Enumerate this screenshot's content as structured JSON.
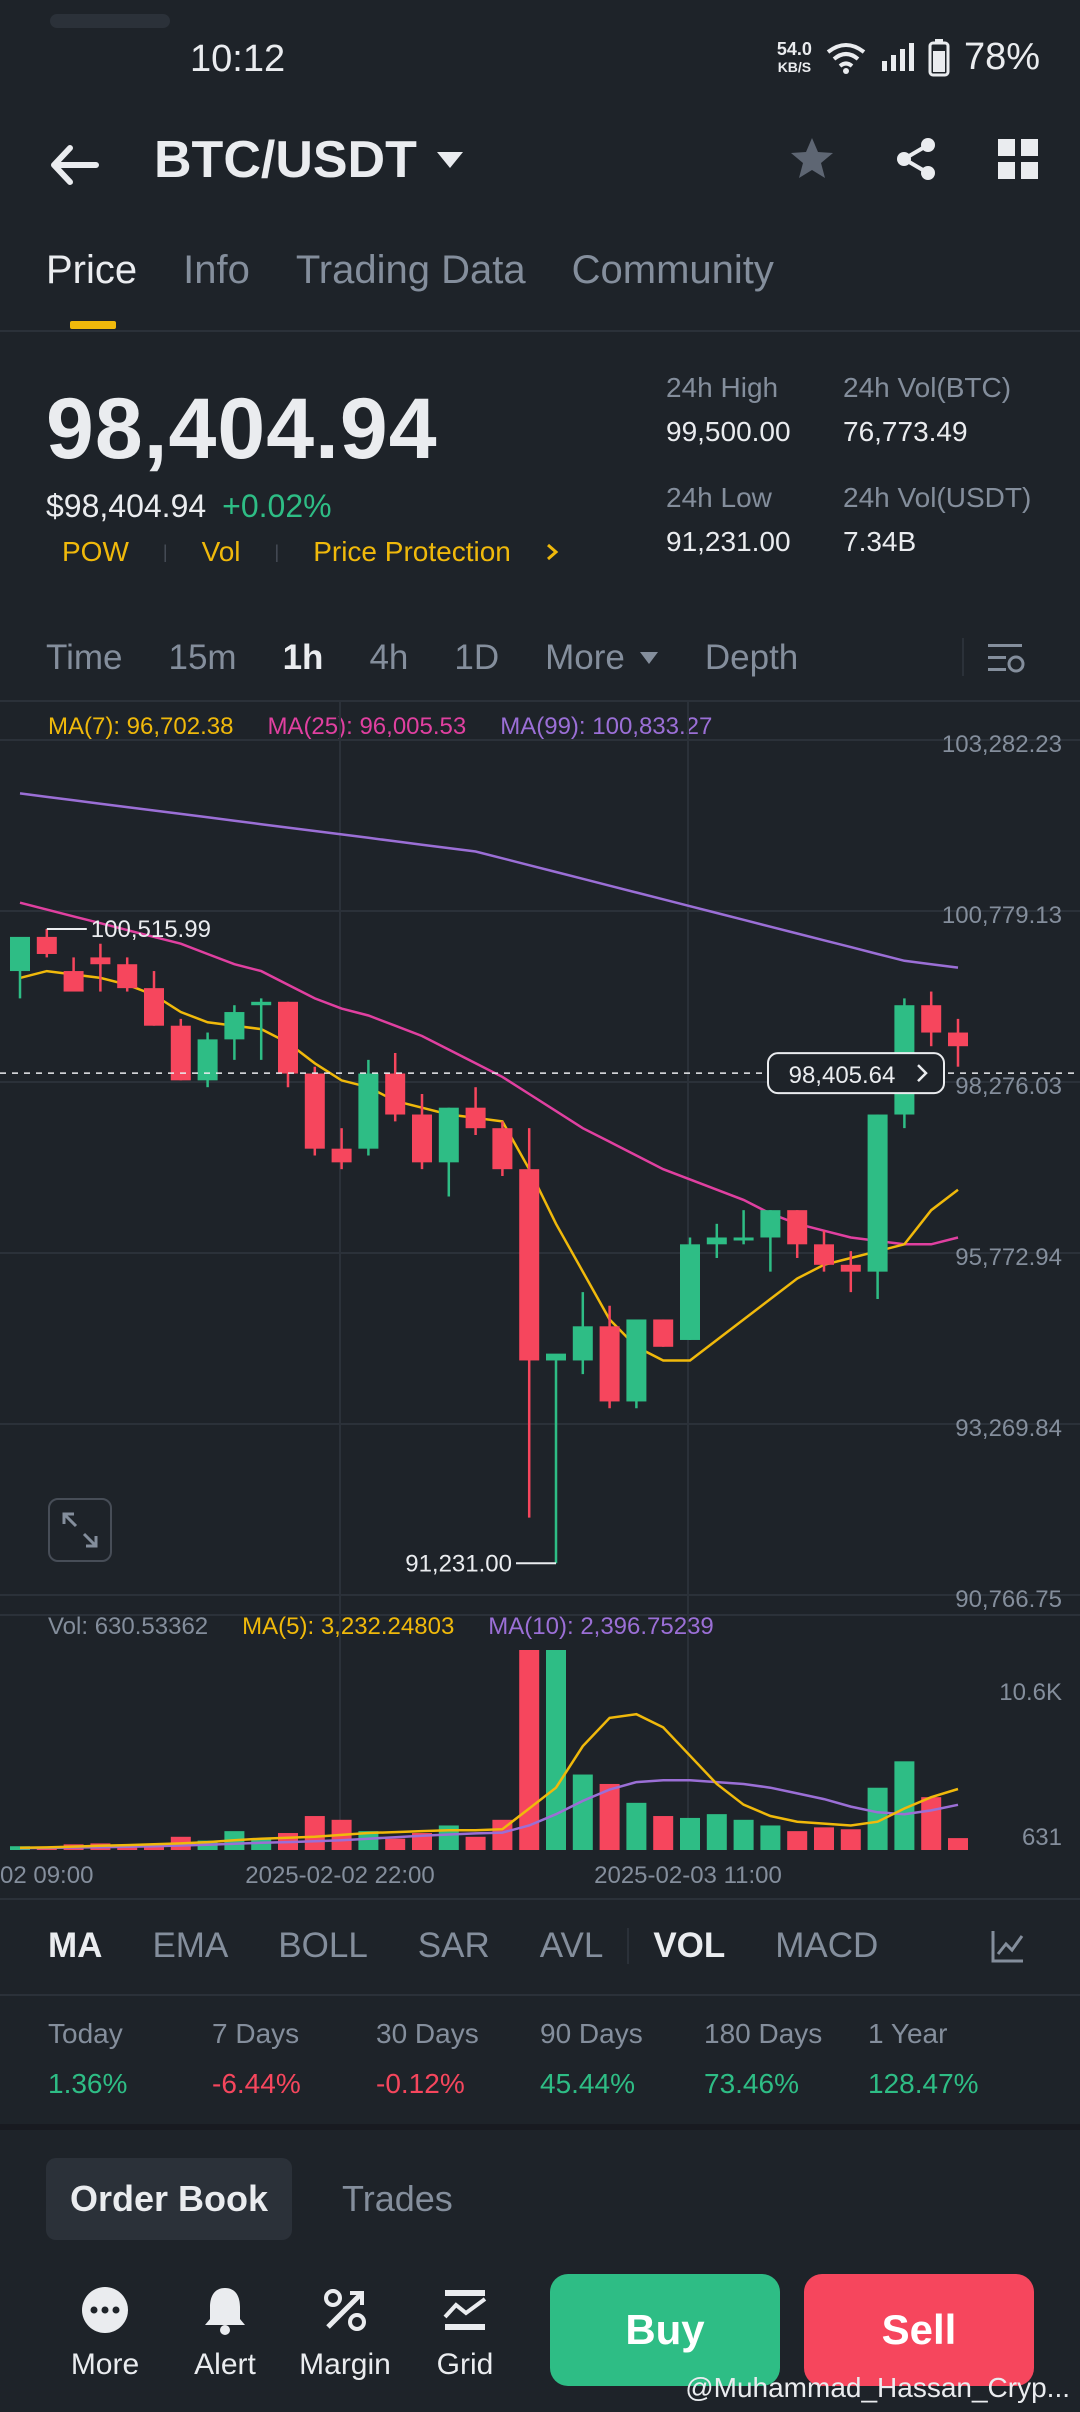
{
  "status": {
    "time": "10:12",
    "netspeed_value": "54.0",
    "netspeed_unit": "KB/S",
    "battery": "78%"
  },
  "header": {
    "pair": "BTC/USDT"
  },
  "tabs": [
    {
      "label": "Price",
      "active": true
    },
    {
      "label": "Info"
    },
    {
      "label": "Trading Data"
    },
    {
      "label": "Community"
    }
  ],
  "price": {
    "last": "98,404.94",
    "usd": "$98,404.94",
    "change": "+0.02%",
    "tags": [
      "POW",
      "Vol",
      "Price Protection"
    ],
    "stats": {
      "high_label": "24h High",
      "high": "99,500.00",
      "low_label": "24h Low",
      "low": "91,231.00",
      "volbtc_label": "24h Vol(BTC)",
      "volbtc": "76,773.49",
      "volusdt_label": "24h Vol(USDT)",
      "volusdt": "7.34B"
    }
  },
  "intervals": [
    "Time",
    "15m",
    "1h",
    "4h",
    "1D",
    "More",
    "Depth"
  ],
  "ma": {
    "ma7": "MA(7): 96,702.38",
    "ma25": "MA(25): 96,005.53",
    "ma99": "MA(99): 100,833.27"
  },
  "volume_legend": {
    "vol": "Vol: 630.53362",
    "ma5": "MA(5): 3,232.24803",
    "ma10": "MA(10): 2,396.75239"
  },
  "colors": {
    "up": "#2ebd85",
    "down": "#f6465d",
    "ma7": "#f0b90b",
    "ma25": "#e040a0",
    "ma99": "#9b6fd6",
    "accent": "#f0b90b"
  },
  "chart_data": {
    "type": "candlestick",
    "price_axis_ticks": [
      "103,282.23",
      "100,779.13",
      "98,276.03",
      "95,772.94",
      "93,269.84",
      "90,766.75"
    ],
    "volume_axis_ticks": [
      "10.6K",
      "631"
    ],
    "time_axis_ticks": [
      "02 09:00",
      "2025-02-02 22:00",
      "2025-02-03 11:00"
    ],
    "current_price_tag": "98,405.64",
    "high_marker": "100,515.99",
    "low_marker": "91,231.00",
    "ylim": [
      90766.75,
      103282.23
    ],
    "candles": [
      {
        "o": 99900,
        "h": 100300,
        "l": 99500,
        "c": 100400,
        "v": 200
      },
      {
        "o": 100400,
        "h": 100515.99,
        "l": 100100,
        "c": 100150,
        "v": 180
      },
      {
        "o": 99900,
        "h": 100100,
        "l": 99700,
        "c": 99600,
        "v": 300
      },
      {
        "o": 100100,
        "h": 100300,
        "l": 99600,
        "c": 100000,
        "v": 350
      },
      {
        "o": 100000,
        "h": 100100,
        "l": 99600,
        "c": 99650,
        "v": 250
      },
      {
        "o": 99650,
        "h": 99900,
        "l": 99100,
        "c": 99100,
        "v": 300
      },
      {
        "o": 99100,
        "h": 99200,
        "l": 98300,
        "c": 98300,
        "v": 700
      },
      {
        "o": 98300,
        "h": 99000,
        "l": 98200,
        "c": 98900,
        "v": 500
      },
      {
        "o": 98900,
        "h": 99400,
        "l": 98600,
        "c": 99300,
        "v": 1000
      },
      {
        "o": 99400,
        "h": 99500,
        "l": 98600,
        "c": 99450,
        "v": 600
      },
      {
        "o": 99450,
        "h": 99450,
        "l": 98200,
        "c": 98400,
        "v": 900
      },
      {
        "o": 98400,
        "h": 98500,
        "l": 97200,
        "c": 97300,
        "v": 1800
      },
      {
        "o": 97300,
        "h": 97600,
        "l": 97000,
        "c": 97100,
        "v": 1600
      },
      {
        "o": 97300,
        "h": 98600,
        "l": 97200,
        "c": 98400,
        "v": 1000
      },
      {
        "o": 98400,
        "h": 98700,
        "l": 97700,
        "c": 97800,
        "v": 600
      },
      {
        "o": 97800,
        "h": 98100,
        "l": 97000,
        "c": 97100,
        "v": 900
      },
      {
        "o": 97100,
        "h": 97900,
        "l": 96600,
        "c": 97900,
        "v": 1300
      },
      {
        "o": 97900,
        "h": 98200,
        "l": 97500,
        "c": 97600,
        "v": 700
      },
      {
        "o": 97600,
        "h": 97700,
        "l": 96900,
        "c": 97000,
        "v": 1600
      },
      {
        "o": 97000,
        "h": 97600,
        "l": 91900,
        "c": 94200,
        "v": 10600
      },
      {
        "o": 94200,
        "h": 94200,
        "l": 91231,
        "c": 94300,
        "v": 10600
      },
      {
        "o": 94200,
        "h": 95200,
        "l": 94000,
        "c": 94700,
        "v": 4000
      },
      {
        "o": 94700,
        "h": 95000,
        "l": 93500,
        "c": 93600,
        "v": 3500
      },
      {
        "o": 93600,
        "h": 94800,
        "l": 93500,
        "c": 94800,
        "v": 2500
      },
      {
        "o": 94800,
        "h": 94800,
        "l": 94400,
        "c": 94400,
        "v": 1800
      },
      {
        "o": 94500,
        "h": 96000,
        "l": 94500,
        "c": 95900,
        "v": 1700
      },
      {
        "o": 95900,
        "h": 96200,
        "l": 95700,
        "c": 96000,
        "v": 1900
      },
      {
        "o": 96000,
        "h": 96400,
        "l": 95900,
        "c": 96000,
        "v": 1600
      },
      {
        "o": 96000,
        "h": 96400,
        "l": 95500,
        "c": 96400,
        "v": 1300
      },
      {
        "o": 96400,
        "h": 96400,
        "l": 95700,
        "c": 95900,
        "v": 1000
      },
      {
        "o": 95900,
        "h": 96100,
        "l": 95500,
        "c": 95600,
        "v": 1200
      },
      {
        "o": 95600,
        "h": 95800,
        "l": 95200,
        "c": 95500,
        "v": 1100
      },
      {
        "o": 95500,
        "h": 97800,
        "l": 95100,
        "c": 97800,
        "v": 3300
      },
      {
        "o": 97800,
        "h": 99500,
        "l": 97600,
        "c": 99400,
        "v": 4700
      },
      {
        "o": 99400,
        "h": 99600,
        "l": 98800,
        "c": 99000,
        "v": 2800
      },
      {
        "o": 99000,
        "h": 99200,
        "l": 98500,
        "c": 98800,
        "v": 630
      }
    ],
    "ma7": [
      99800,
      99900,
      99850,
      99800,
      99700,
      99550,
      99300,
      99150,
      99100,
      99050,
      98850,
      98550,
      98300,
      98200,
      98000,
      97900,
      97800,
      97750,
      97700,
      97000,
      96200,
      95500,
      94800,
      94400,
      94200,
      94200,
      94500,
      94800,
      95100,
      95400,
      95600,
      95700,
      95800,
      95900,
      96400,
      96700
    ],
    "ma25": [
      100900,
      100800,
      100700,
      100600,
      100500,
      100400,
      100300,
      100150,
      100000,
      99900,
      99700,
      99500,
      99350,
      99250,
      99100,
      98950,
      98750,
      98550,
      98350,
      98100,
      97850,
      97600,
      97400,
      97200,
      97000,
      96850,
      96700,
      96550,
      96350,
      96200,
      96100,
      96000,
      95950,
      95900,
      95900,
      96000
    ],
    "ma99": [
      102500,
      102450,
      102400,
      102350,
      102300,
      102250,
      102200,
      102150,
      102100,
      102050,
      102000,
      101950,
      101900,
      101850,
      101800,
      101750,
      101700,
      101650,
      101550,
      101450,
      101350,
      101250,
      101150,
      101050,
      100950,
      100850,
      100750,
      100650,
      100550,
      100450,
      100350,
      100250,
      100150,
      100050,
      100000,
      99950
    ]
  },
  "indicators": [
    "MA",
    "EMA",
    "BOLL",
    "SAR",
    "AVL",
    "VOL",
    "MACD"
  ],
  "performance": [
    {
      "label": "Today",
      "value": "1.36%",
      "dir": "up"
    },
    {
      "label": "7 Days",
      "value": "-6.44%",
      "dir": "down"
    },
    {
      "label": "30 Days",
      "value": "-0.12%",
      "dir": "down"
    },
    {
      "label": "90 Days",
      "value": "45.44%",
      "dir": "up"
    },
    {
      "label": "180 Days",
      "value": "73.46%",
      "dir": "up"
    },
    {
      "label": "1 Year",
      "value": "128.47%",
      "dir": "up"
    }
  ],
  "orderbook_tabs": [
    "Order Book",
    "Trades"
  ],
  "bottom": {
    "more": "More",
    "alert": "Alert",
    "margin": "Margin",
    "grid": "Grid",
    "buy": "Buy",
    "sell": "Sell"
  },
  "watermark": "@Muhammad_Hassan_Cryp..."
}
